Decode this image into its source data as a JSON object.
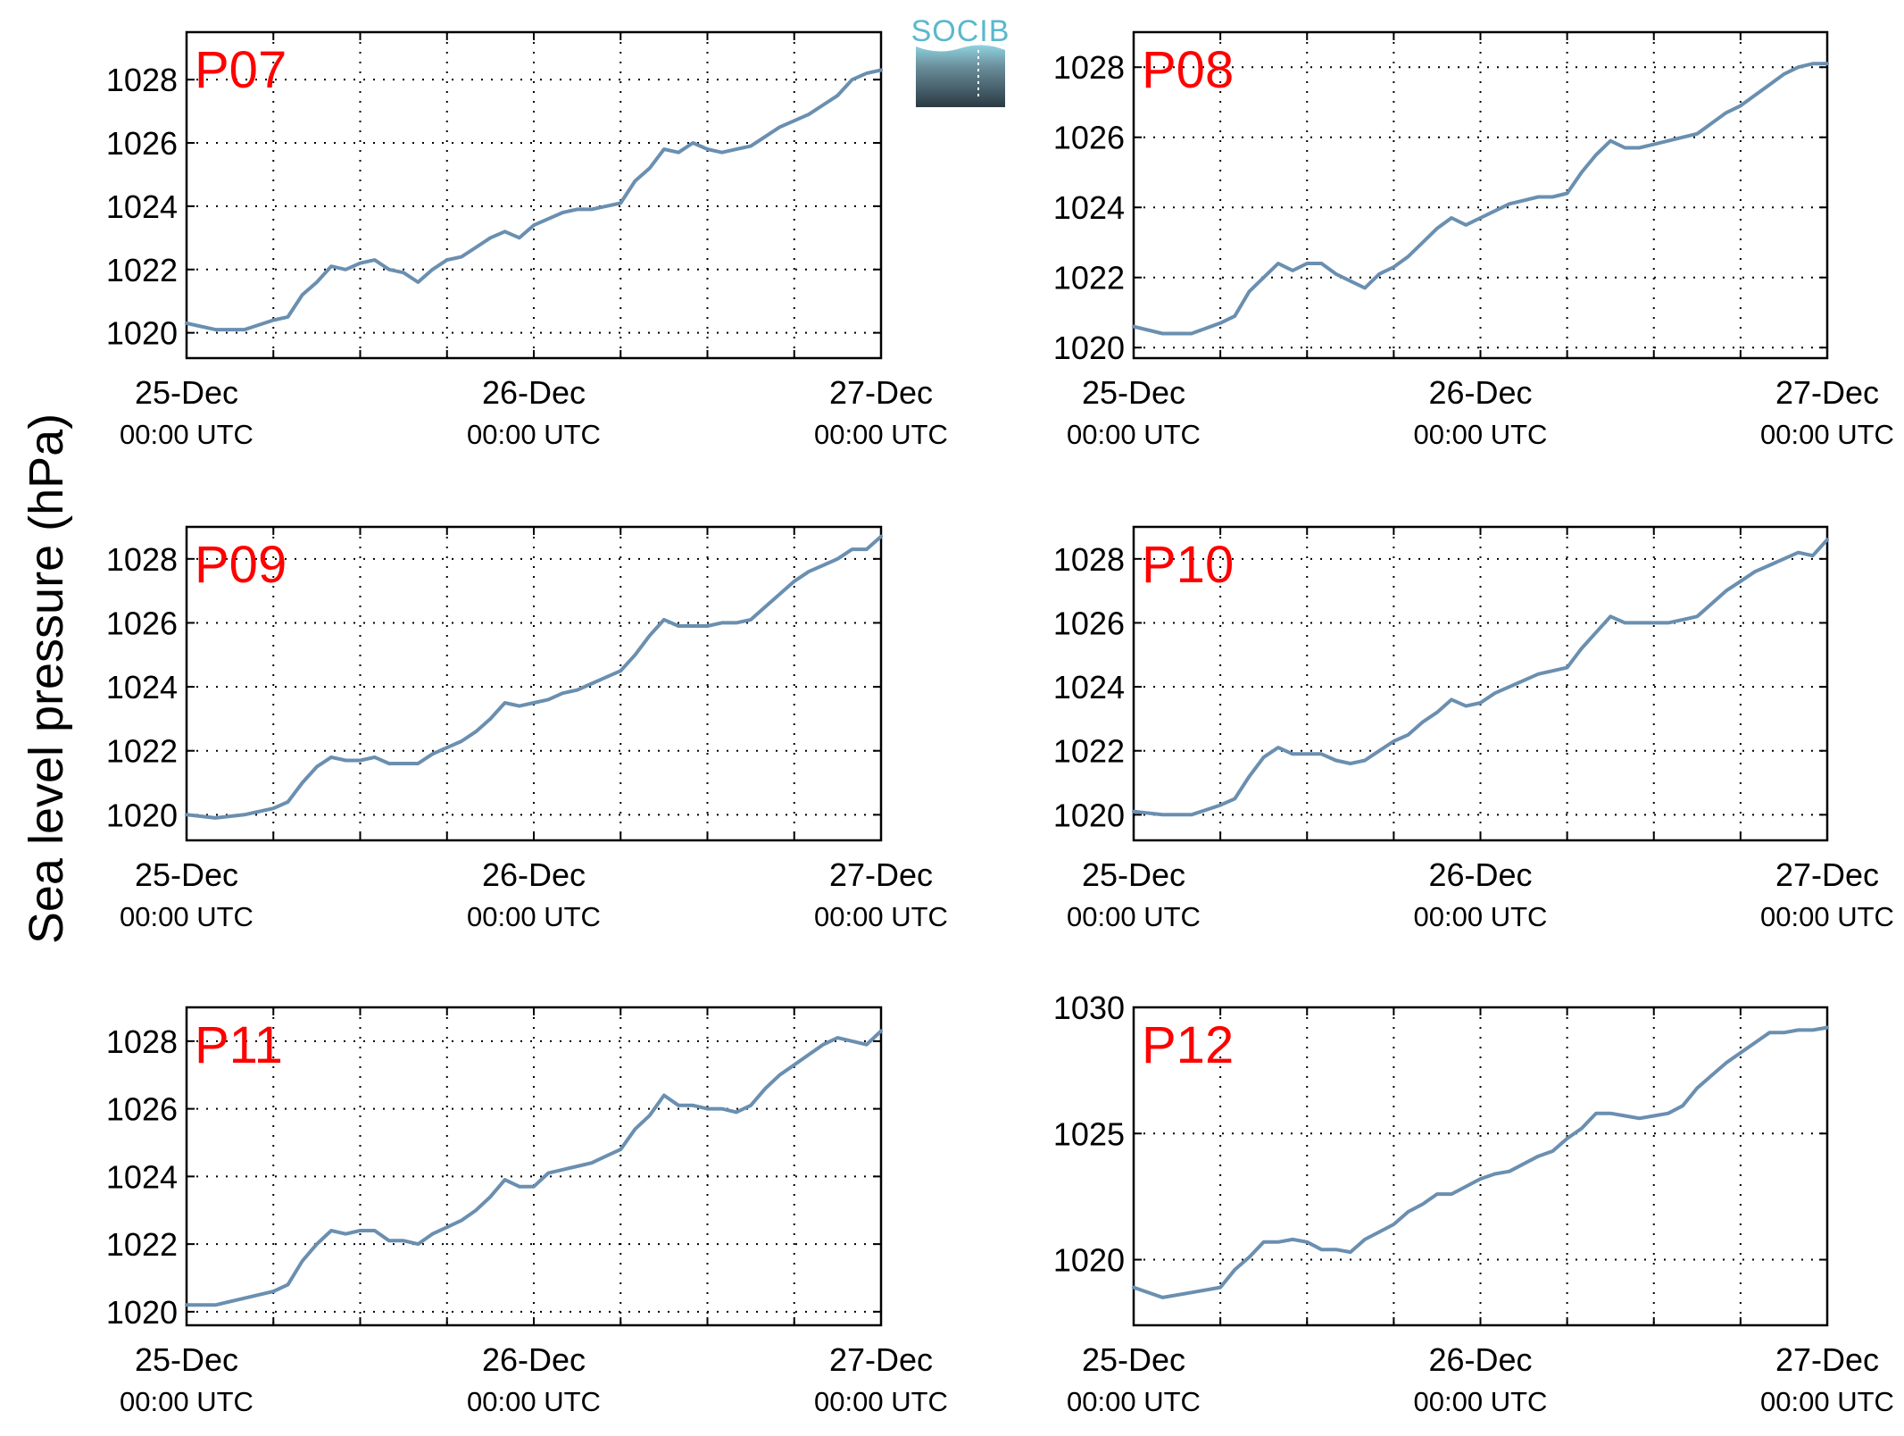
{
  "figure": {
    "ylabel": "Sea level pressure (hPa)",
    "logo": "SOCIB",
    "colors": {
      "line": "#6a8fb0",
      "label": "#ff0000",
      "grid": "#000000"
    }
  },
  "chart_data": [
    {
      "type": "line",
      "title": "P07",
      "x_ticks": [
        {
          "date": "25-Dec",
          "time": "00:00 UTC"
        },
        {
          "date": "26-Dec",
          "time": "00:00 UTC"
        },
        {
          "date": "27-Dec",
          "time": "00:00 UTC"
        }
      ],
      "xlim": [
        "2024-12-25T00:00Z",
        "2024-12-27T00:00Z"
      ],
      "ylim": [
        1019.2,
        1029.5
      ],
      "yticks": [
        1020,
        1022,
        1024,
        1026,
        1028
      ],
      "grid": true,
      "series": [
        {
          "x": [
            0,
            2,
            4,
            6,
            7,
            8,
            9,
            10,
            11,
            12,
            13,
            14,
            15,
            16,
            17,
            18,
            19,
            20,
            21,
            22,
            23,
            24,
            25,
            26,
            27,
            28,
            29,
            30,
            31,
            32,
            33,
            34,
            35,
            36,
            37,
            38,
            39,
            40,
            41,
            42,
            43,
            44,
            45,
            46,
            47,
            48
          ],
          "y": [
            1020.3,
            1020.1,
            1020.1,
            1020.4,
            1020.5,
            1021.2,
            1021.6,
            1022.1,
            1022.0,
            1022.2,
            1022.3,
            1022.0,
            1021.9,
            1021.6,
            1022.0,
            1022.3,
            1022.4,
            1022.7,
            1023.0,
            1023.2,
            1023.0,
            1023.4,
            1023.6,
            1023.8,
            1023.9,
            1023.9,
            1024.0,
            1024.1,
            1024.8,
            1025.2,
            1025.8,
            1025.7,
            1026.0,
            1025.8,
            1025.7,
            1025.8,
            1025.9,
            1026.2,
            1026.5,
            1026.7,
            1026.9,
            1027.2,
            1027.5,
            1028.0,
            1028.2,
            1028.3
          ]
        }
      ]
    },
    {
      "type": "line",
      "title": "P08",
      "x_ticks": [
        {
          "date": "25-Dec",
          "time": "00:00 UTC"
        },
        {
          "date": "26-Dec",
          "time": "00:00 UTC"
        },
        {
          "date": "27-Dec",
          "time": "00:00 UTC"
        }
      ],
      "xlim": [
        "2024-12-25T00:00Z",
        "2024-12-27T00:00Z"
      ],
      "ylim": [
        1019.7,
        1029.0
      ],
      "yticks": [
        1020,
        1022,
        1024,
        1026,
        1028
      ],
      "grid": true,
      "series": [
        {
          "x": [
            0,
            2,
            4,
            6,
            7,
            8,
            9,
            10,
            11,
            12,
            13,
            14,
            15,
            16,
            17,
            18,
            19,
            20,
            21,
            22,
            23,
            24,
            25,
            26,
            27,
            28,
            29,
            30,
            31,
            32,
            33,
            34,
            35,
            36,
            37,
            38,
            39,
            40,
            41,
            42,
            43,
            44,
            45,
            46,
            47,
            48
          ],
          "y": [
            1020.6,
            1020.4,
            1020.4,
            1020.7,
            1020.9,
            1021.6,
            1022.0,
            1022.4,
            1022.2,
            1022.4,
            1022.4,
            1022.1,
            1021.9,
            1021.7,
            1022.1,
            1022.3,
            1022.6,
            1023.0,
            1023.4,
            1023.7,
            1023.5,
            1023.7,
            1023.9,
            1024.1,
            1024.2,
            1024.3,
            1024.3,
            1024.4,
            1025.0,
            1025.5,
            1025.9,
            1025.7,
            1025.7,
            1025.8,
            1025.9,
            1026.0,
            1026.1,
            1026.4,
            1026.7,
            1026.9,
            1027.2,
            1027.5,
            1027.8,
            1028.0,
            1028.1,
            1028.1
          ]
        }
      ]
    },
    {
      "type": "line",
      "title": "P09",
      "x_ticks": [
        {
          "date": "25-Dec",
          "time": "00:00 UTC"
        },
        {
          "date": "26-Dec",
          "time": "00:00 UTC"
        },
        {
          "date": "27-Dec",
          "time": "00:00 UTC"
        }
      ],
      "xlim": [
        "2024-12-25T00:00Z",
        "2024-12-27T00:00Z"
      ],
      "ylim": [
        1019.2,
        1029.0
      ],
      "yticks": [
        1020,
        1022,
        1024,
        1026,
        1028
      ],
      "grid": true,
      "series": [
        {
          "x": [
            0,
            2,
            4,
            6,
            7,
            8,
            9,
            10,
            11,
            12,
            13,
            14,
            15,
            16,
            17,
            18,
            19,
            20,
            21,
            22,
            23,
            24,
            25,
            26,
            27,
            28,
            29,
            30,
            31,
            32,
            33,
            34,
            35,
            36,
            37,
            38,
            39,
            40,
            41,
            42,
            43,
            44,
            45,
            46,
            47,
            48
          ],
          "y": [
            1020.0,
            1019.9,
            1020.0,
            1020.2,
            1020.4,
            1021.0,
            1021.5,
            1021.8,
            1021.7,
            1021.7,
            1021.8,
            1021.6,
            1021.6,
            1021.6,
            1021.9,
            1022.1,
            1022.3,
            1022.6,
            1023.0,
            1023.5,
            1023.4,
            1023.5,
            1023.6,
            1023.8,
            1023.9,
            1024.1,
            1024.3,
            1024.5,
            1025.0,
            1025.6,
            1026.1,
            1025.9,
            1025.9,
            1025.9,
            1026.0,
            1026.0,
            1026.1,
            1026.5,
            1026.9,
            1027.3,
            1027.6,
            1027.8,
            1028.0,
            1028.3,
            1028.3,
            1028.7
          ]
        }
      ]
    },
    {
      "type": "line",
      "title": "P10",
      "x_ticks": [
        {
          "date": "25-Dec",
          "time": "00:00 UTC"
        },
        {
          "date": "26-Dec",
          "time": "00:00 UTC"
        },
        {
          "date": "27-Dec",
          "time": "00:00 UTC"
        }
      ],
      "xlim": [
        "2024-12-25T00:00Z",
        "2024-12-27T00:00Z"
      ],
      "ylim": [
        1019.2,
        1029.0
      ],
      "yticks": [
        1020,
        1022,
        1024,
        1026,
        1028
      ],
      "grid": true,
      "series": [
        {
          "x": [
            0,
            2,
            4,
            6,
            7,
            8,
            9,
            10,
            11,
            12,
            13,
            14,
            15,
            16,
            17,
            18,
            19,
            20,
            21,
            22,
            23,
            24,
            25,
            26,
            27,
            28,
            29,
            30,
            31,
            32,
            33,
            34,
            35,
            36,
            37,
            38,
            39,
            40,
            41,
            42,
            43,
            44,
            45,
            46,
            47,
            48
          ],
          "y": [
            1020.1,
            1020.0,
            1020.0,
            1020.3,
            1020.5,
            1021.2,
            1021.8,
            1022.1,
            1021.9,
            1021.9,
            1021.9,
            1021.7,
            1021.6,
            1021.7,
            1022.0,
            1022.3,
            1022.5,
            1022.9,
            1023.2,
            1023.6,
            1023.4,
            1023.5,
            1023.8,
            1024.0,
            1024.2,
            1024.4,
            1024.5,
            1024.6,
            1025.2,
            1025.7,
            1026.2,
            1026.0,
            1026.0,
            1026.0,
            1026.0,
            1026.1,
            1026.2,
            1026.6,
            1027.0,
            1027.3,
            1027.6,
            1027.8,
            1028.0,
            1028.2,
            1028.1,
            1028.6
          ]
        }
      ]
    },
    {
      "type": "line",
      "title": "P11",
      "x_ticks": [
        {
          "date": "25-Dec",
          "time": "00:00 UTC"
        },
        {
          "date": "26-Dec",
          "time": "00:00 UTC"
        },
        {
          "date": "27-Dec",
          "time": "00:00 UTC"
        }
      ],
      "xlim": [
        "2024-12-25T00:00Z",
        "2024-12-27T00:00Z"
      ],
      "ylim": [
        1019.6,
        1029.0
      ],
      "yticks": [
        1020,
        1022,
        1024,
        1026,
        1028
      ],
      "grid": true,
      "series": [
        {
          "x": [
            0,
            2,
            4,
            6,
            7,
            8,
            9,
            10,
            11,
            12,
            13,
            14,
            15,
            16,
            17,
            18,
            19,
            20,
            21,
            22,
            23,
            24,
            25,
            26,
            27,
            28,
            29,
            30,
            31,
            32,
            33,
            34,
            35,
            36,
            37,
            38,
            39,
            40,
            41,
            42,
            43,
            44,
            45,
            46,
            47,
            48
          ],
          "y": [
            1020.2,
            1020.2,
            1020.4,
            1020.6,
            1020.8,
            1021.5,
            1022.0,
            1022.4,
            1022.3,
            1022.4,
            1022.4,
            1022.1,
            1022.1,
            1022.0,
            1022.3,
            1022.5,
            1022.7,
            1023.0,
            1023.4,
            1023.9,
            1023.7,
            1023.7,
            1024.1,
            1024.2,
            1024.3,
            1024.4,
            1024.6,
            1024.8,
            1025.4,
            1025.8,
            1026.4,
            1026.1,
            1026.1,
            1026.0,
            1026.0,
            1025.9,
            1026.1,
            1026.6,
            1027.0,
            1027.3,
            1027.6,
            1027.9,
            1028.1,
            1028.0,
            1027.9,
            1028.3
          ]
        }
      ]
    },
    {
      "type": "line",
      "title": "P12",
      "x_ticks": [
        {
          "date": "25-Dec",
          "time": "00:00 UTC"
        },
        {
          "date": "26-Dec",
          "time": "00:00 UTC"
        },
        {
          "date": "27-Dec",
          "time": "00:00 UTC"
        }
      ],
      "xlim": [
        "2024-12-25T00:00Z",
        "2024-12-27T00:00Z"
      ],
      "ylim": [
        1017.4,
        1030.0
      ],
      "yticks": [
        1020,
        1025,
        1030
      ],
      "grid": true,
      "series": [
        {
          "x": [
            0,
            2,
            4,
            6,
            7,
            8,
            9,
            10,
            11,
            12,
            13,
            14,
            15,
            16,
            17,
            18,
            19,
            20,
            21,
            22,
            23,
            24,
            25,
            26,
            27,
            28,
            29,
            30,
            31,
            32,
            33,
            34,
            35,
            36,
            37,
            38,
            39,
            40,
            41,
            42,
            43,
            44,
            45,
            46,
            47,
            48
          ],
          "y": [
            1018.9,
            1018.5,
            1018.7,
            1018.9,
            1019.6,
            1020.1,
            1020.7,
            1020.7,
            1020.8,
            1020.7,
            1020.4,
            1020.4,
            1020.3,
            1020.8,
            1021.1,
            1021.4,
            1021.9,
            1022.2,
            1022.6,
            1022.6,
            1022.9,
            1023.2,
            1023.4,
            1023.5,
            1023.8,
            1024.1,
            1024.3,
            1024.8,
            1025.2,
            1025.8,
            1025.8,
            1025.7,
            1025.6,
            1025.7,
            1025.8,
            1026.1,
            1026.8,
            1027.3,
            1027.8,
            1028.2,
            1028.6,
            1029.0,
            1029.0,
            1029.1,
            1029.1,
            1029.2
          ]
        }
      ]
    }
  ]
}
